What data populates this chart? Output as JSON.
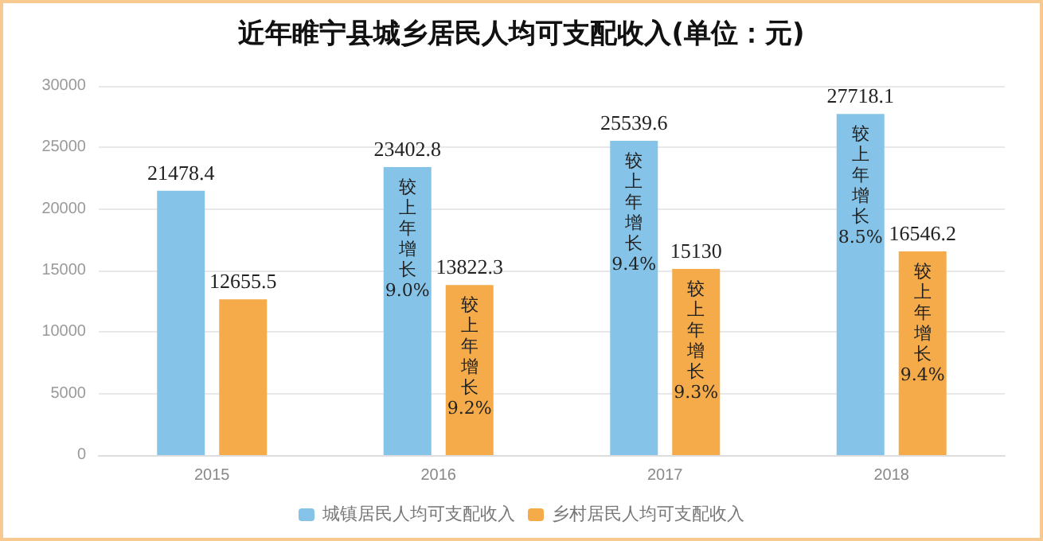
{
  "chart_data": {
    "type": "bar",
    "title": "近年睢宁县城乡居民人均可支配收入(单位：元)",
    "categories": [
      "2015",
      "2016",
      "2017",
      "2018"
    ],
    "series": [
      {
        "name": "城镇居民人均可支配收入",
        "color": "#85c4e8",
        "values": [
          21478.4,
          23402.8,
          25539.6,
          27718.1
        ]
      },
      {
        "name": "乡村居民人均可支配收入",
        "color": "#f5ab4a",
        "values": [
          12655.5,
          13822.3,
          15130,
          16546.2
        ]
      }
    ],
    "annotations": [
      {
        "text": "较上年增长9.0%",
        "x": "2016",
        "y": 23402.8
      },
      {
        "text": "较上年增长9.2%",
        "x": "2016",
        "y": 13822.3
      },
      {
        "text": "较上年增长9.4%",
        "x": "2017",
        "y": 25539.6
      },
      {
        "text": "较上年增长9.3%",
        "x": "2017",
        "y": 15130
      },
      {
        "text": "较上年增长8.5%",
        "x": "2018",
        "y": 27718.1
      },
      {
        "text": "较上年增长9.4%",
        "x": "2018",
        "y": 16546.2
      }
    ],
    "ylim": [
      0,
      30000
    ],
    "yticks": [
      0,
      5000,
      10000,
      15000,
      20000,
      25000,
      30000
    ],
    "grid": "y",
    "legend": "bottom",
    "data_labels": true
  }
}
